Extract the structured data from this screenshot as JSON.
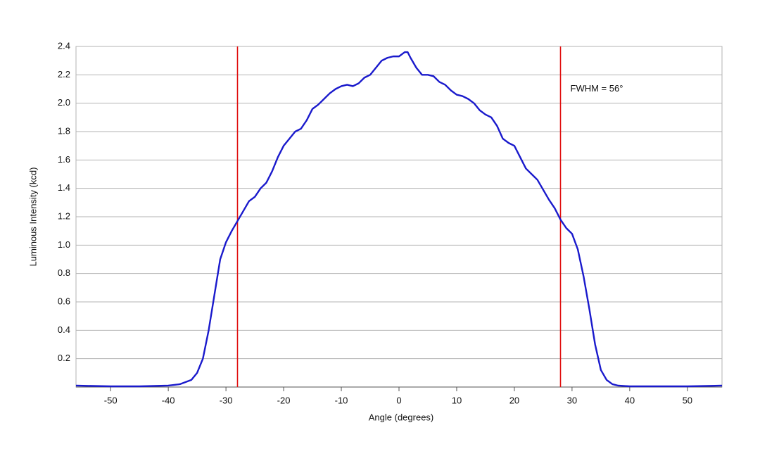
{
  "chart_data": {
    "type": "line",
    "x_label": "Angle (degrees)",
    "y_label": "Luminous Intensity (kcd)",
    "annotation": "FWHM = 56°",
    "x": [
      -56,
      -50,
      -45,
      -40,
      -38,
      -36,
      -35,
      -34,
      -33,
      -32,
      -31,
      -30,
      -29,
      -28,
      -27,
      -26,
      -25,
      -24,
      -23,
      -22,
      -21,
      -20,
      -19,
      -18,
      -17,
      -16,
      -15,
      -14,
      -13,
      -12,
      -11,
      -10,
      -9,
      -8,
      -7,
      -6,
      -5,
      -4,
      -3,
      -2,
      -1,
      0,
      1,
      1.5,
      2,
      3,
      4,
      5,
      6,
      7,
      8,
      9,
      10,
      11,
      12,
      13,
      14,
      15,
      16,
      17,
      18,
      19,
      20,
      21,
      22,
      23,
      24,
      25,
      26,
      27,
      28,
      29,
      30,
      31,
      32,
      33,
      34,
      35,
      36,
      37,
      38,
      40,
      45,
      50,
      56
    ],
    "series": [
      {
        "name": "Luminous Intensity",
        "color": "#1a1acc",
        "values": [
          0.01,
          0.005,
          0.005,
          0.01,
          0.02,
          0.05,
          0.1,
          0.2,
          0.4,
          0.65,
          0.9,
          1.02,
          1.1,
          1.17,
          1.24,
          1.31,
          1.34,
          1.4,
          1.44,
          1.52,
          1.62,
          1.7,
          1.75,
          1.8,
          1.82,
          1.88,
          1.96,
          1.99,
          2.03,
          2.07,
          2.1,
          2.12,
          2.13,
          2.12,
          2.14,
          2.18,
          2.2,
          2.25,
          2.3,
          2.32,
          2.33,
          2.33,
          2.36,
          2.36,
          2.32,
          2.25,
          2.2,
          2.2,
          2.19,
          2.15,
          2.13,
          2.09,
          2.06,
          2.05,
          2.03,
          2.0,
          1.95,
          1.92,
          1.9,
          1.84,
          1.75,
          1.72,
          1.7,
          1.62,
          1.54,
          1.5,
          1.46,
          1.39,
          1.32,
          1.26,
          1.18,
          1.12,
          1.08,
          0.97,
          0.78,
          0.55,
          0.3,
          0.12,
          0.05,
          0.02,
          0.01,
          0.005,
          0.005,
          0.005,
          0.01
        ]
      }
    ],
    "vlines": {
      "values": [
        -28,
        28
      ],
      "color": "#e01010"
    },
    "xlim": [
      -56,
      56
    ],
    "xticks": [
      -50,
      -40,
      -30,
      -20,
      -10,
      0,
      10,
      20,
      30,
      40,
      50
    ],
    "ylim": [
      0,
      2.4
    ],
    "yticks": [
      0.2,
      0.4,
      0.6,
      0.8,
      {
        "value": 1,
        "label": "1.0"
      },
      1.2,
      1.4,
      1.6,
      1.8,
      {
        "value": 2,
        "label": "2.0"
      },
      2.2,
      2.4
    ],
    "grid": true
  }
}
